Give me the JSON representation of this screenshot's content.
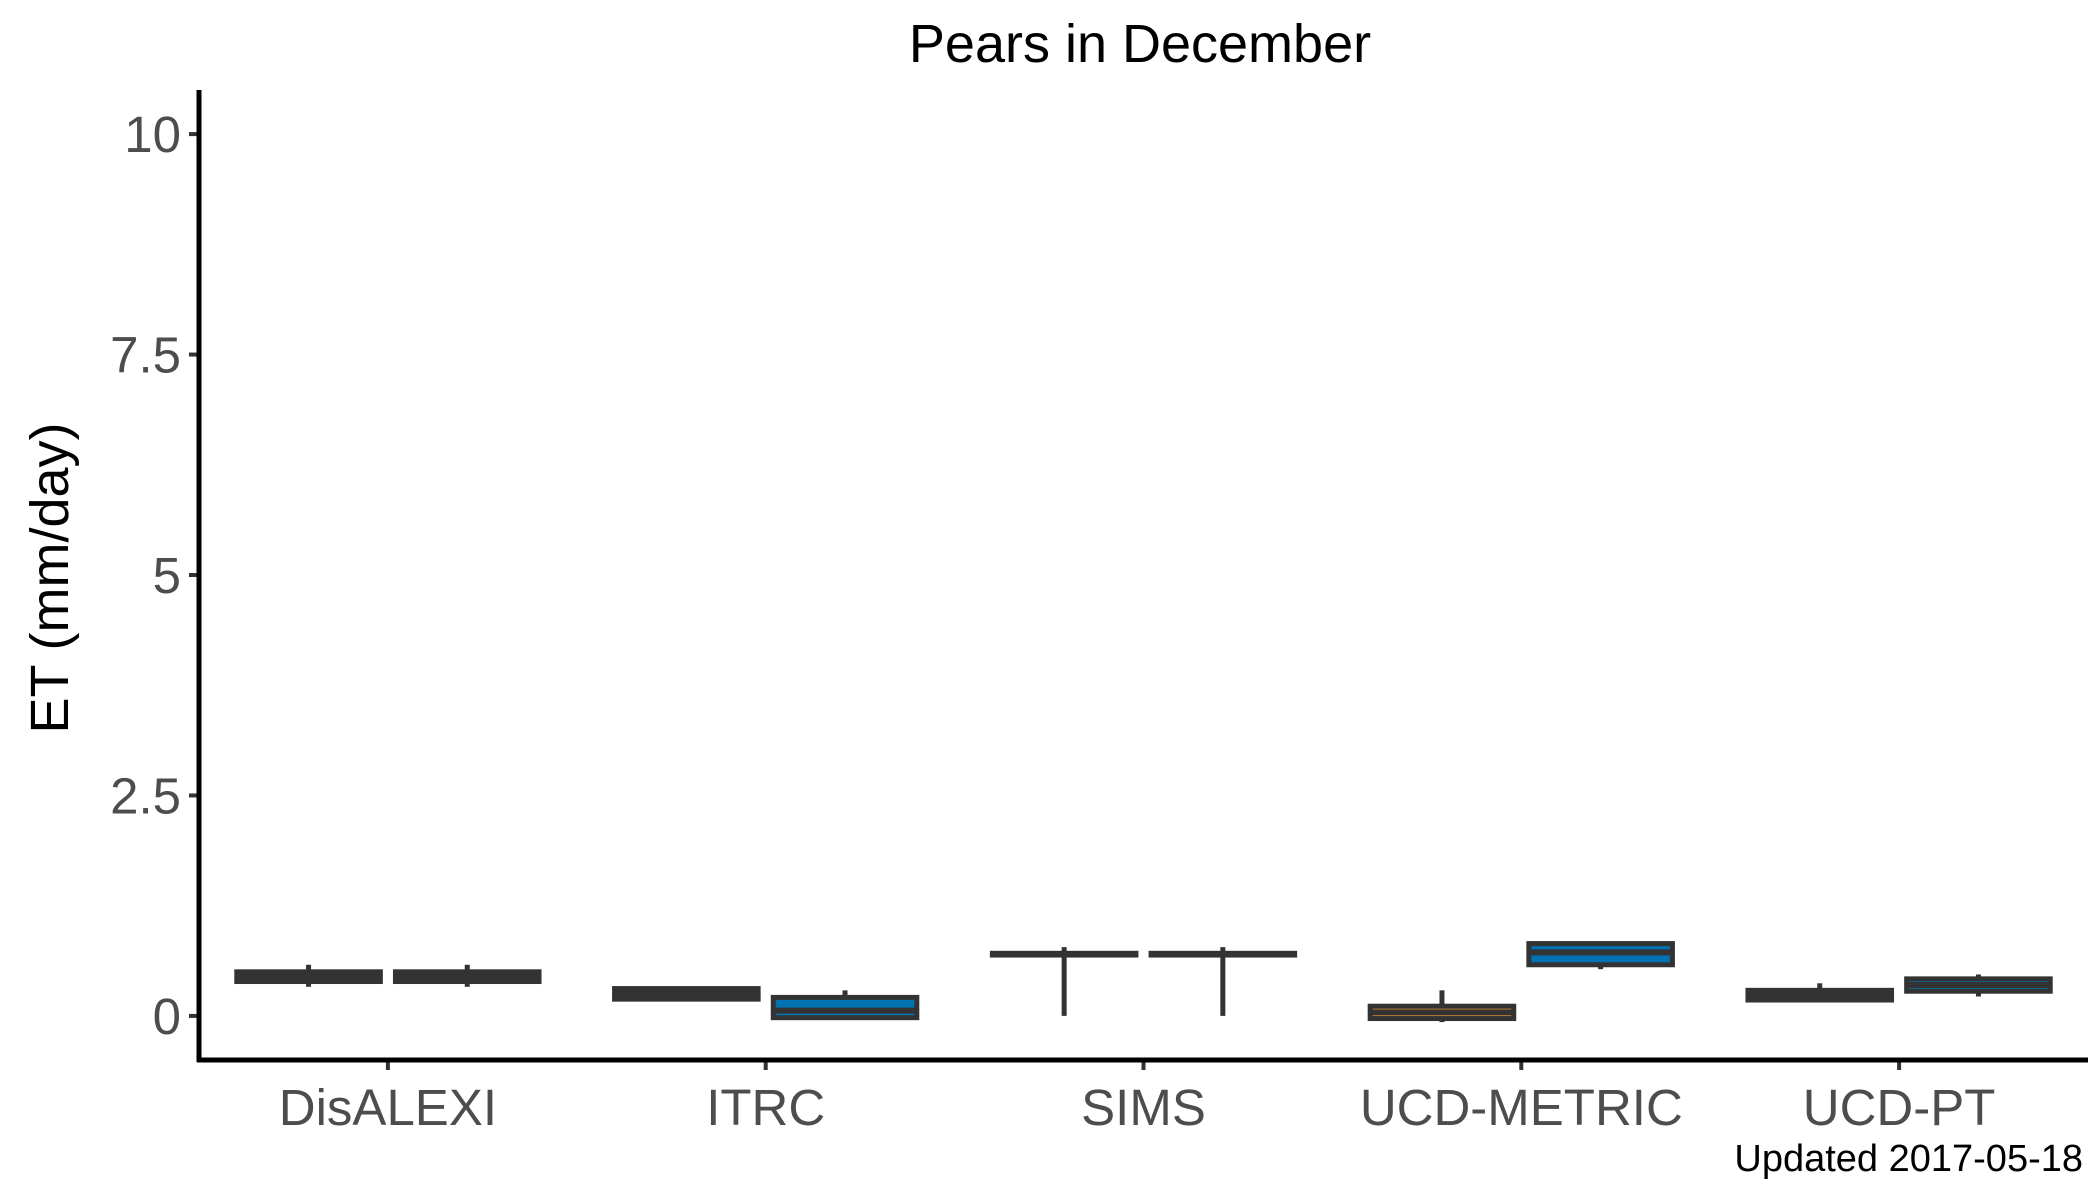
{
  "chart_data": {
    "type": "boxplot",
    "title": "Pears in December",
    "xlabel": "",
    "ylabel": "ET (mm/day)",
    "ylim": [
      -0.5,
      10.5
    ],
    "yticks": [
      0,
      2.5,
      5,
      7.5,
      10
    ],
    "ytick_labels": [
      "0",
      "2.5",
      "5",
      "7.5",
      "10"
    ],
    "categories": [
      "DisALEXI",
      "ITRC",
      "SIMS",
      "UCD-METRIC",
      "UCD-PT"
    ],
    "caption": "Updated  2017-05-18",
    "grid": false,
    "legend": "none",
    "series": [
      {
        "color": "#f59a3a",
        "boxes": [
          {
            "category": "DisALEXI",
            "min": 0.33,
            "q1": 0.39,
            "median": 0.45,
            "q3": 0.5,
            "max": 0.58
          },
          {
            "category": "ITRC",
            "min": 0.19,
            "q1": 0.19,
            "median": 0.25,
            "q3": 0.31,
            "max": 0.33
          },
          {
            "category": "SIMS",
            "min": 0.0,
            "q1": 0.69,
            "median": 0.7,
            "q3": 0.71,
            "max": 0.78
          },
          {
            "category": "UCD-METRIC",
            "min": -0.07,
            "q1": -0.03,
            "median": 0.04,
            "q3": 0.11,
            "max": 0.29
          },
          {
            "category": "UCD-PT",
            "min": 0.18,
            "q1": 0.18,
            "median": 0.24,
            "q3": 0.29,
            "max": 0.37
          }
        ]
      },
      {
        "color": "#0072b2",
        "boxes": [
          {
            "category": "DisALEXI",
            "min": 0.33,
            "q1": 0.39,
            "median": 0.45,
            "q3": 0.5,
            "max": 0.58
          },
          {
            "category": "ITRC",
            "min": -0.02,
            "q1": -0.02,
            "median": 0.06,
            "q3": 0.21,
            "max": 0.29
          },
          {
            "category": "SIMS",
            "min": 0.0,
            "q1": 0.69,
            "median": 0.7,
            "q3": 0.71,
            "max": 0.78
          },
          {
            "category": "UCD-METRIC",
            "min": 0.53,
            "q1": 0.58,
            "median": 0.72,
            "q3": 0.82,
            "max": 0.82
          },
          {
            "category": "UCD-PT",
            "min": 0.22,
            "q1": 0.28,
            "median": 0.35,
            "q3": 0.42,
            "max": 0.47
          }
        ]
      }
    ]
  }
}
